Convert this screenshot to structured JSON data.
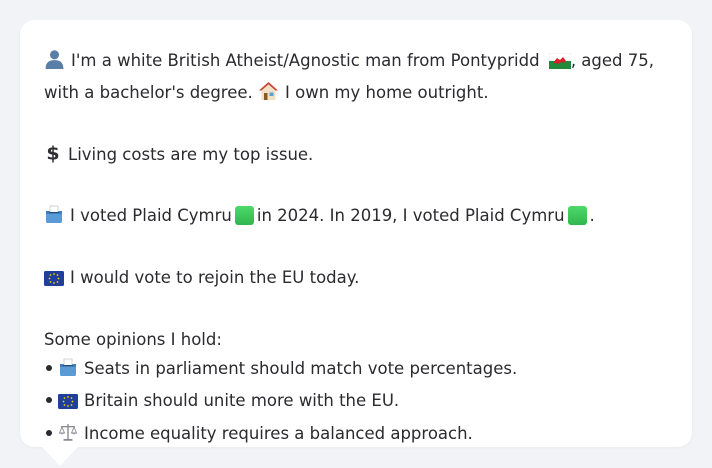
{
  "profile": {
    "intro_line1_a": "I'm a white British Atheist/Agnostic man from Pontypridd",
    "intro_line1_b": ", aged 75,",
    "intro_line2_a": "with a bachelor's degree.",
    "intro_line2_b": "I own my home outright.",
    "issue": "Living costs are my top issue.",
    "vote_a": "I voted Plaid Cymru",
    "vote_b": "in 2024. In 2019, I voted Plaid Cymru",
    "vote_c": ".",
    "eu": "I would vote to rejoin the EU today.",
    "opinions_heading": "Some opinions I hold:",
    "opinions": [
      "Seats in parliament should match vote percentages.",
      "Britain should unite more with the EU.",
      "Income equality requires a balanced approach."
    ]
  },
  "icons": {
    "person": "person-silhouette-icon",
    "wales_flag": "wales-flag-icon",
    "house": "house-icon",
    "dollar": "dollar-sign-icon",
    "ballot": "ballot-box-icon",
    "party_color": "green-square-icon",
    "eu_flag": "eu-flag-icon",
    "scales": "balance-scale-icon"
  },
  "colors": {
    "background": "#f2f3f6",
    "card": "#ffffff",
    "text": "#2a2a2f",
    "party_green": "#3cc65a"
  }
}
